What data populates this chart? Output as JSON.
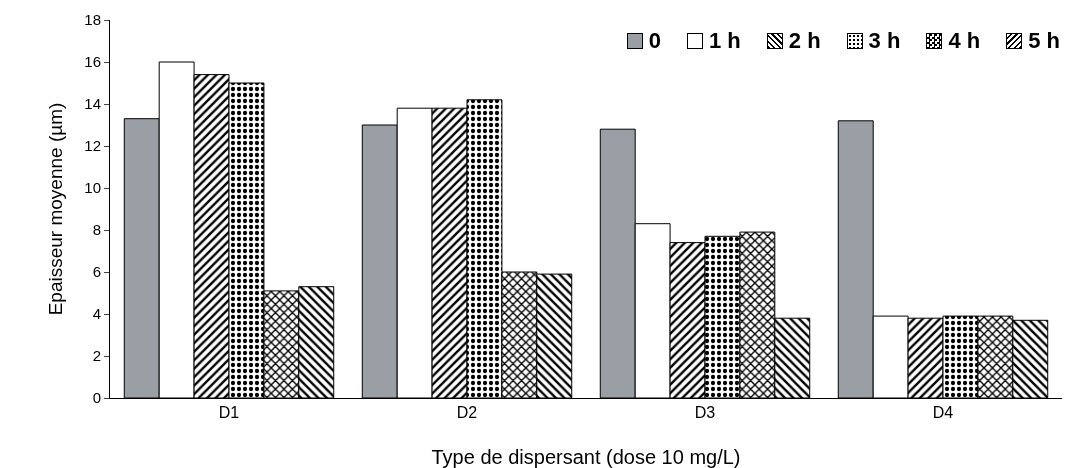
{
  "chart_data": {
    "type": "bar",
    "xlabel": "Type de dispersant (dose 10 mg/L)",
    "ylabel": "Epaisseur moyenne (µm)",
    "categories": [
      "D1",
      "D2",
      "D3",
      "D4"
    ],
    "series": [
      {
        "name": "0",
        "color": "#9a9fa6",
        "values": [
          13.3,
          13.0,
          12.8,
          13.2
        ]
      },
      {
        "name": "1 h",
        "color": "#ffffff",
        "values": [
          16.0,
          13.8,
          8.3,
          3.9
        ]
      },
      {
        "name": "2 h",
        "color": "#000000",
        "values": [
          15.4,
          13.8,
          7.4,
          3.8
        ]
      },
      {
        "name": "3 h",
        "color": "#000000",
        "values": [
          15.0,
          14.2,
          7.7,
          3.9
        ]
      },
      {
        "name": "4 h",
        "color": "#000000",
        "values": [
          5.1,
          6.0,
          7.9,
          3.9
        ]
      },
      {
        "name": "5 h",
        "color": "#000000",
        "values": [
          5.3,
          5.9,
          3.8,
          3.7
        ]
      }
    ],
    "ylim": [
      0,
      18
    ],
    "yticks": [
      0,
      2,
      4,
      6,
      8,
      10,
      12,
      14,
      16,
      18
    ],
    "grid": false,
    "legend": "top right"
  }
}
